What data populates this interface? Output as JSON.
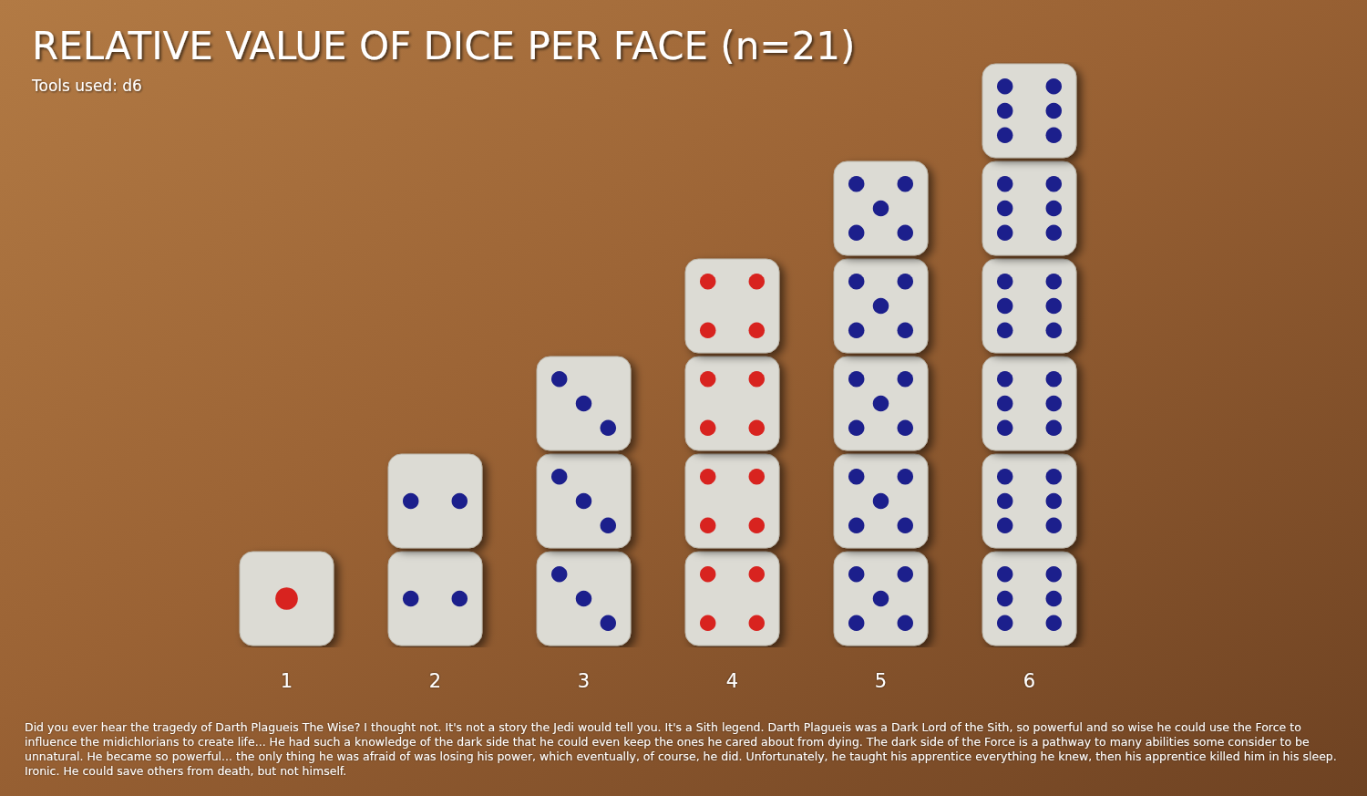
{
  "chart_data": {
    "type": "bar",
    "title": "RELATIVE VALUE OF DICE PER FACE (n=21)",
    "subtitle": "Tools used: d6",
    "caption": "Did you ever hear the tragedy of Darth Plagueis The Wise? I thought not. It's not a story the Jedi would tell you. It's a Sith legend. Darth Plagueis was a Dark Lord of the Sith, so powerful and so wise he could use the Force to influence the midichlorians to create life... He had such a knowledge of the dark side that he could even keep the ones he cared about from dying. The dark side of the Force is a pathway to many abilities some consider to be unnatural. He became so powerful... the only thing he was afraid of was losing his power, which eventually, of course, he did. Unfortunately, he taught his apprentice everything he knew, then his apprentice killed him in his sleep. Ironic. He could save others from death, but not himself.",
    "categories": [
      "1",
      "2",
      "3",
      "4",
      "5",
      "6"
    ],
    "values": [
      1,
      2,
      3,
      4,
      5,
      6
    ],
    "colors": [
      "#d8231f",
      "#1c1f8c",
      "#1c1f8c",
      "#d8231f",
      "#1c1f8c",
      "#1c1f8c"
    ],
    "marker": "die",
    "tick_labels": "x",
    "grid": false
  }
}
